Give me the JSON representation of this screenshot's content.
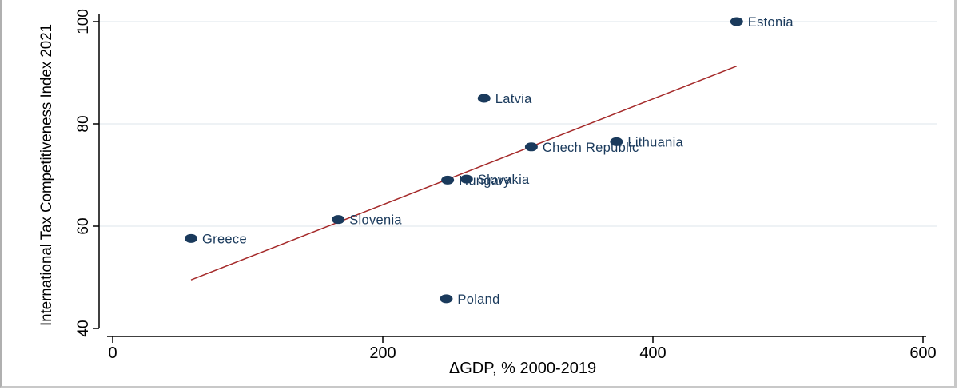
{
  "chart_data": {
    "type": "scatter",
    "title": "",
    "xlabel": "ΔGDP, % 2000-2019",
    "ylabel": "International Tax Competitiveness Index 2021",
    "xlim": [
      0,
      600
    ],
    "ylim": [
      40,
      100
    ],
    "xticks": [
      0,
      200,
      400,
      600
    ],
    "yticks": [
      40,
      60,
      80,
      100
    ],
    "grid": "horizontal",
    "legend": "none",
    "colors": {
      "marker": "#1a3a5c",
      "label": "#1a3a5c",
      "fit_line": "#a52a2a",
      "grid": "#e8eef2",
      "axis": "#000000"
    },
    "points": [
      {
        "label": "Estonia",
        "x": 462,
        "y": 100
      },
      {
        "label": "Latvia",
        "x": 275,
        "y": 85
      },
      {
        "label": "Chech Republic",
        "x": 310,
        "y": 75.5
      },
      {
        "label": "Lithuania",
        "x": 373,
        "y": 76.5
      },
      {
        "label": "Slovakia",
        "x": 262,
        "y": 69.2
      },
      {
        "label": "Hungary",
        "x": 248,
        "y": 69
      },
      {
        "label": "Slovenia",
        "x": 167,
        "y": 61.3
      },
      {
        "label": "Greece",
        "x": 58,
        "y": 57.6
      },
      {
        "label": "Poland",
        "x": 247,
        "y": 45.8
      }
    ],
    "fit_line": {
      "x": [
        58,
        462
      ],
      "y": [
        49.5,
        91.3
      ]
    }
  }
}
